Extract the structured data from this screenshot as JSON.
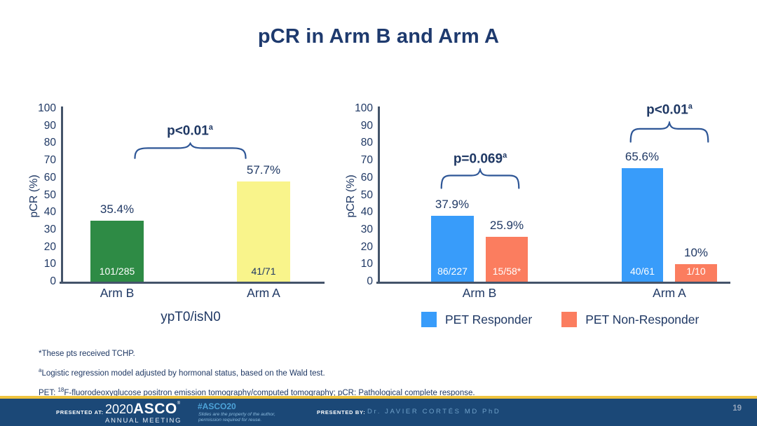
{
  "title": "pCR in Arm B and Arm A",
  "chart_data": [
    {
      "type": "bar",
      "title": "ypT0/isN0",
      "ylabel": "pCR (%)",
      "ylim": [
        0,
        100
      ],
      "yticks": [
        100,
        90,
        80,
        70,
        60,
        50,
        40,
        30,
        20,
        10,
        0
      ],
      "grid": false,
      "categories": [
        "Arm B",
        "Arm A"
      ],
      "bars": [
        {
          "category": "Arm B",
          "value": 35.4,
          "label": "35.4%",
          "count": "101/285",
          "color": "#2e8b45",
          "count_color": "#ffffff"
        },
        {
          "category": "Arm A",
          "value": 57.7,
          "label": "57.7%",
          "count": "41/71",
          "color": "#f9f48b",
          "count_color": "#1f3864"
        }
      ],
      "annotation": {
        "text": "p<0.01",
        "sup": "a"
      }
    },
    {
      "type": "bar",
      "ylabel": "pCR (%)",
      "ylim": [
        0,
        100
      ],
      "yticks": [
        100,
        90,
        80,
        70,
        60,
        50,
        40,
        30,
        20,
        10,
        0
      ],
      "grid": false,
      "categories": [
        "Arm B",
        "Arm A"
      ],
      "series": [
        {
          "name": "PET Responder",
          "color": "#389cfa",
          "values": [
            37.9,
            65.6
          ],
          "labels": [
            "37.9%",
            "65.6%"
          ],
          "counts": [
            "86/227",
            "40/61"
          ],
          "count_color": "#ffffff"
        },
        {
          "name": "PET Non-Responder",
          "color": "#fb7d5f",
          "values": [
            25.9,
            10
          ],
          "labels": [
            "25.9%",
            "10%"
          ],
          "counts": [
            "15/58*",
            "1/10"
          ],
          "count_color": "#ffffff"
        }
      ],
      "annotations": [
        {
          "text": "p=0.069",
          "sup": "a"
        },
        {
          "text": "p<0.01",
          "sup": "a"
        }
      ],
      "legend": [
        {
          "label": "PET Responder",
          "color": "#389cfa"
        },
        {
          "label": "PET Non-Responder",
          "color": "#fb7d5f"
        }
      ],
      "legend_position": "bottom"
    }
  ],
  "footnotes": {
    "line1": "*These pts received TCHP.",
    "line2_sup": "a",
    "line2_text": "Logistic regression model adjusted by hormonal status, based on the Wald test.",
    "line3_prefix": "PET: ",
    "line3_sup": "18",
    "line3_text": "F-fluorodeoxyglucose positron emission tomography/computed tomography; pCR: Pathological complete response."
  },
  "footer": {
    "presented_at_label": "PRESENTED AT:",
    "logo_year": "2020",
    "logo_name": "ASCO",
    "logo_reg": "®",
    "logo_sub": "ANNUAL MEETING",
    "hashtag": "#ASCO20",
    "tagline_line1": "Slides are the property of the author,",
    "tagline_line2": "permission required for reuse.",
    "presented_by_label": "PRESENTED BY:",
    "presenter": "Dr. JAVIER CORTÉS MD PhD",
    "page_number": "19"
  },
  "colors": {
    "title_text": "#1e3a6e",
    "axis_line": "#44546a",
    "brace": "#2e5696",
    "footer_bg": "#1b4877",
    "gold_line": "#eec33e"
  }
}
